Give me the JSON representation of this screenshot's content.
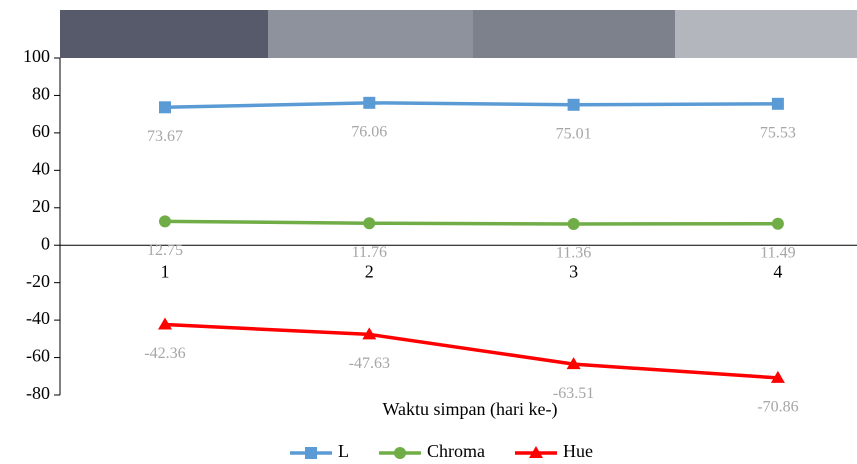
{
  "chart_data": {
    "type": "line",
    "x_label": "Waktu simpan (hari ke-)",
    "categories": [
      "1",
      "2",
      "3",
      "4"
    ],
    "series": [
      {
        "name": "L",
        "color": "#5b9bd5",
        "marker": "square",
        "values": [
          73.67,
          76.06,
          75.01,
          75.53
        ]
      },
      {
        "name": "Chroma",
        "color": "#70ad47",
        "marker": "circle",
        "values": [
          12.75,
          11.76,
          11.36,
          11.49
        ]
      },
      {
        "name": "Hue",
        "color": "#ff0000",
        "marker": "triangle",
        "values": [
          -42.36,
          -47.63,
          -63.51,
          -70.86
        ]
      }
    ],
    "ylim": [
      -80,
      100
    ],
    "yticks": [
      100,
      80,
      60,
      40,
      20,
      0,
      -20,
      -40,
      -60,
      -80
    ],
    "legend": "bottom"
  }
}
